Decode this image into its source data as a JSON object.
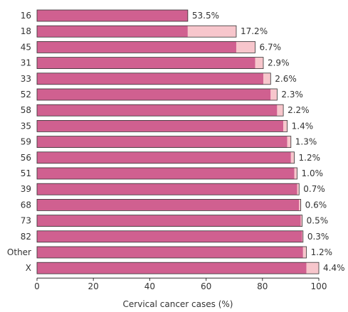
{
  "chart_data": {
    "type": "bar",
    "orientation": "horizontal",
    "stacked": "cumulative",
    "categories": [
      "16",
      "18",
      "45",
      "31",
      "33",
      "52",
      "58",
      "35",
      "59",
      "56",
      "51",
      "39",
      "68",
      "73",
      "82",
      "Other",
      "X"
    ],
    "values": [
      53.5,
      17.2,
      6.7,
      2.9,
      2.6,
      2.3,
      2.2,
      1.4,
      1.3,
      1.2,
      1.0,
      0.7,
      0.6,
      0.5,
      0.3,
      1.2,
      4.4
    ],
    "value_labels": [
      "53.5%",
      "17.2%",
      "6.7%",
      "2.9%",
      "2.6%",
      "2.3%",
      "2.2%",
      "1.4%",
      "1.3%",
      "1.2%",
      "1.0%",
      "0.7%",
      "0.6%",
      "0.5%",
      "0.3%",
      "1.2%",
      "4.4%"
    ],
    "xlabel": "Cervical cancer cases (%)",
    "xlim": [
      0,
      100
    ],
    "xticks": [
      "0",
      "20",
      "40",
      "60",
      "80",
      "100"
    ],
    "colors": {
      "cumulative": "#d06090",
      "increment": "#f7c6cc",
      "outline": "#333333"
    },
    "grid": false
  }
}
